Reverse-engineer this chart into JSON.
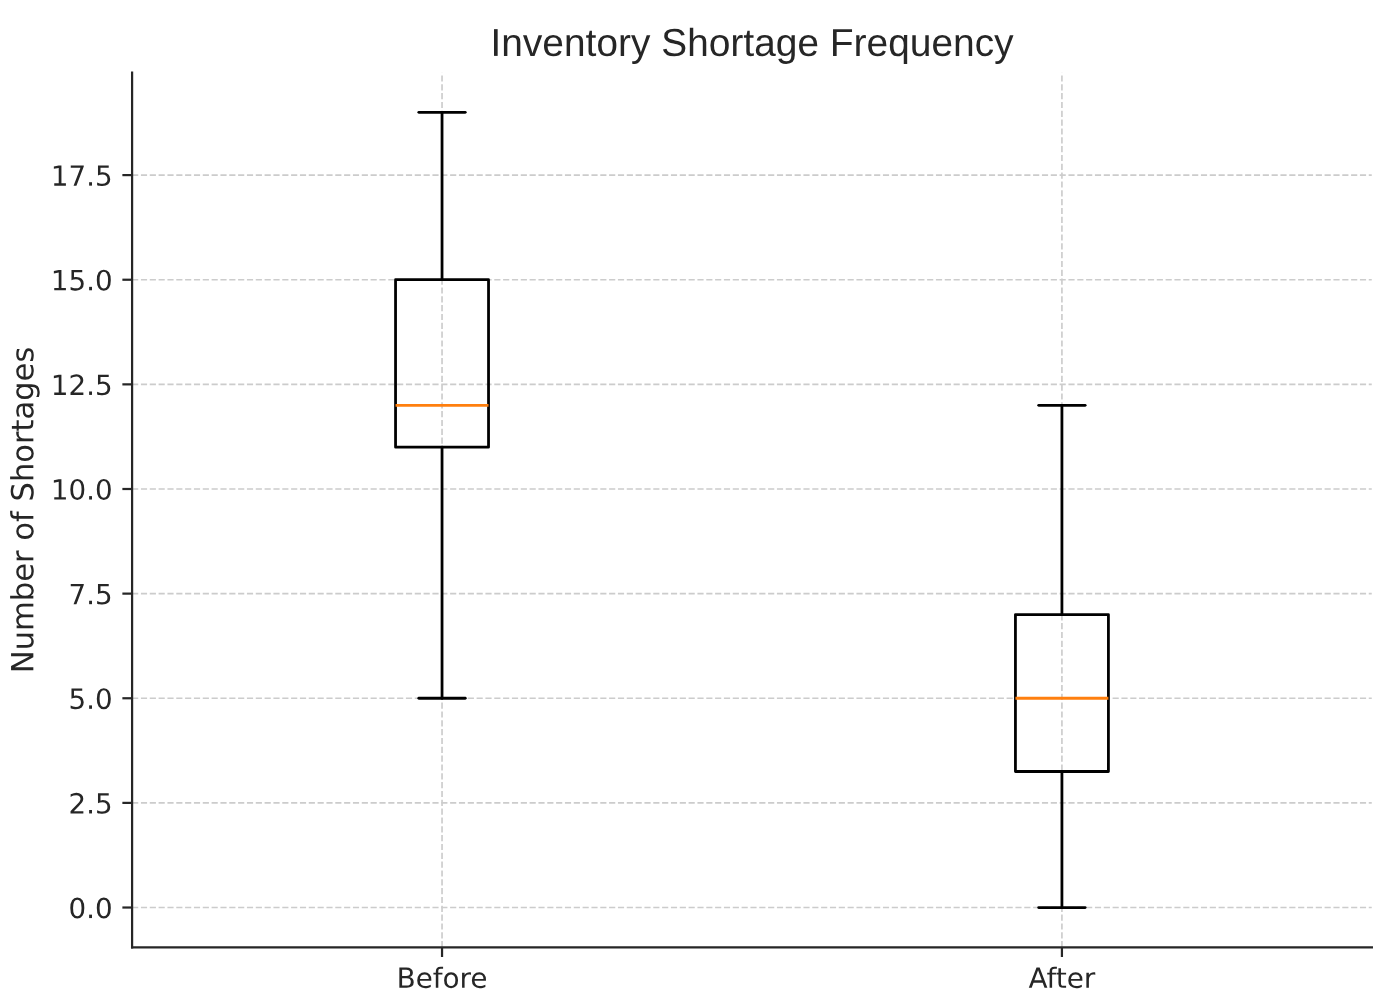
{
  "chart_data": {
    "type": "box",
    "title": "Inventory Shortage Frequency",
    "ylabel": "Number of Shortages",
    "categories": [
      "Before",
      "After"
    ],
    "boxes": [
      {
        "low": 5,
        "q1": 11,
        "median": 12,
        "q3": 15,
        "high": 19
      },
      {
        "low": 0,
        "q1": 3.25,
        "median": 5,
        "q3": 7,
        "high": 12
      }
    ],
    "ylim": [
      -0.95,
      19.95
    ],
    "yticks": [
      {
        "value": 0,
        "label": "0.0"
      },
      {
        "value": 2.5,
        "label": "2.5"
      },
      {
        "value": 5,
        "label": "5.0"
      },
      {
        "value": 7.5,
        "label": "7.5"
      },
      {
        "value": 10,
        "label": "10.0"
      },
      {
        "value": 12.5,
        "label": "12.5"
      },
      {
        "value": 15,
        "label": "15.0"
      },
      {
        "value": 17.5,
        "label": "17.5"
      }
    ],
    "grid": true
  }
}
